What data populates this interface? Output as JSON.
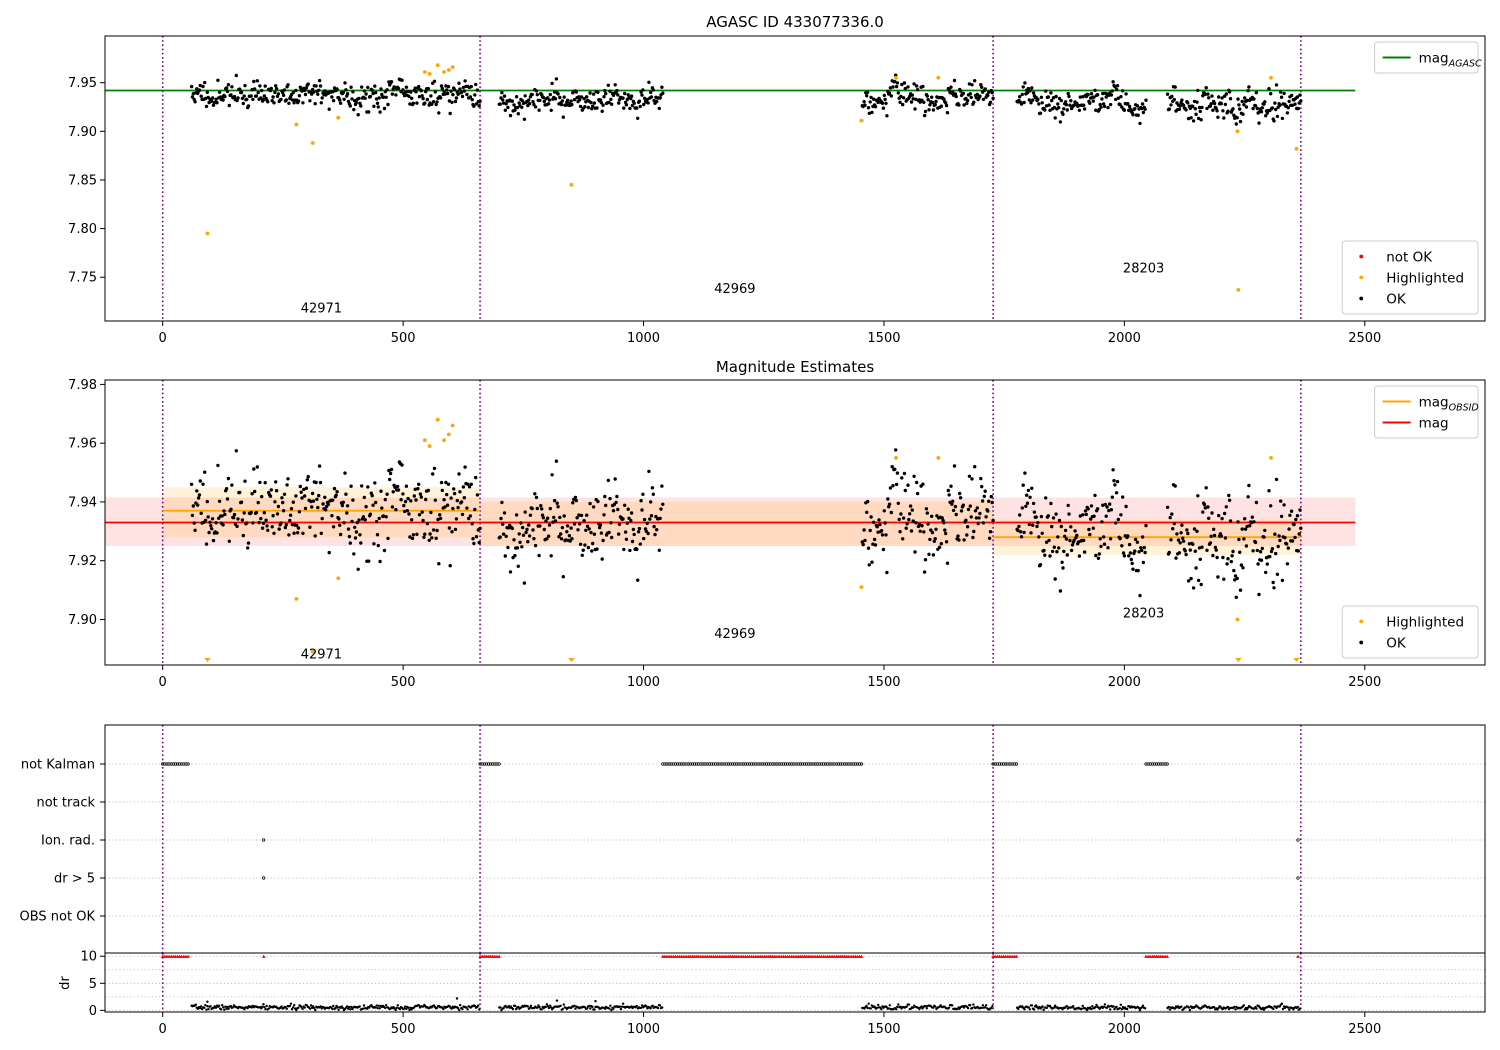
{
  "figure": {
    "background": "#ffffff"
  },
  "chart_data": [
    {
      "type": "scatter",
      "title": "AGASC ID 433077336.0",
      "xlim": [
        -120,
        2750
      ],
      "ylim": [
        7.705,
        7.998
      ],
      "x_ticks": [
        0,
        500,
        1000,
        1500,
        2000,
        2500
      ],
      "y_ticks": [
        7.75,
        7.8,
        7.85,
        7.9,
        7.95
      ],
      "y_tick_labels": [
        "7.75",
        "7.80",
        "7.85",
        "7.90",
        "7.95"
      ],
      "grid": false,
      "obsid_boundaries": [
        0,
        660,
        1727,
        2367
      ],
      "obsid_labels": [
        {
          "text": "42971",
          "x": 330,
          "y": 7.718
        },
        {
          "text": "42969",
          "x": 1190,
          "y": 7.738
        },
        {
          "text": "28203",
          "x": 2040,
          "y": 7.759
        }
      ],
      "hlines": [
        {
          "name": "mag_agasc_line",
          "y": 7.942,
          "x0": -120,
          "x1": 2480,
          "color": "#008000"
        }
      ],
      "point_groups": [
        {
          "name": "ok-points",
          "color": "#000000",
          "size": 1.7,
          "seed": 11,
          "segments": [
            {
              "x0": 60,
              "x1": 660,
              "n": 330,
              "center": 7.938,
              "spread": 0.012
            },
            {
              "x0": 700,
              "x1": 1040,
              "n": 190,
              "center": 7.931,
              "spread": 0.011
            },
            {
              "x0": 1455,
              "x1": 1727,
              "n": 150,
              "center": 7.936,
              "spread": 0.012
            },
            {
              "x0": 1777,
              "x1": 2045,
              "n": 150,
              "center": 7.928,
              "spread": 0.011
            },
            {
              "x0": 2090,
              "x1": 2367,
              "n": 160,
              "center": 7.93,
              "spread": 0.013
            }
          ]
        },
        {
          "name": "highlighted-points",
          "color": "#ffa500",
          "size": 1.9,
          "points": [
            [
              93,
              7.795
            ],
            [
              278,
              7.907
            ],
            [
              312,
              7.888
            ],
            [
              365,
              7.914
            ],
            [
              545,
              7.961
            ],
            [
              555,
              7.959
            ],
            [
              572,
              7.968
            ],
            [
              585,
              7.961
            ],
            [
              595,
              7.963
            ],
            [
              603,
              7.966
            ],
            [
              850,
              7.845
            ],
            [
              1453,
              7.911
            ],
            [
              1525,
              7.955
            ],
            [
              1613,
              7.955
            ],
            [
              2235,
              7.9
            ],
            [
              2237,
              7.737
            ],
            [
              2305,
              7.955
            ],
            [
              2358,
              7.882
            ]
          ]
        },
        {
          "name": "not-ok-points",
          "color": "#ff0000",
          "size": 1.7,
          "points": []
        }
      ],
      "legends": [
        {
          "position": "top-right",
          "entries": [
            {
              "kind": "line",
              "color": "#008000",
              "label": "mag",
              "sub": "AGASC"
            }
          ]
        },
        {
          "position": "bottom-right",
          "entries": [
            {
              "kind": "dot",
              "color": "#ff0000",
              "label": "not OK"
            },
            {
              "kind": "dot",
              "color": "#ffa500",
              "label": "Highlighted"
            },
            {
              "kind": "dot",
              "color": "#000000",
              "label": "OK"
            }
          ]
        }
      ]
    },
    {
      "type": "scatter",
      "title": "Magnitude Estimates",
      "xlim": [
        -120,
        2750
      ],
      "ylim": [
        7.8845,
        7.9815
      ],
      "x_ticks": [
        0,
        500,
        1000,
        1500,
        2000,
        2500
      ],
      "y_ticks": [
        7.9,
        7.92,
        7.94,
        7.96,
        7.98
      ],
      "y_tick_labels": [
        "7.90",
        "7.92",
        "7.94",
        "7.96",
        "7.98"
      ],
      "grid": false,
      "obsid_boundaries": [
        0,
        660,
        1727,
        2367
      ],
      "obsid_labels": [
        {
          "text": "42971",
          "x": 330,
          "y": 7.888
        },
        {
          "text": "42969",
          "x": 1190,
          "y": 7.895
        },
        {
          "text": "28203",
          "x": 2040,
          "y": 7.902
        }
      ],
      "bands": [
        {
          "name": "mag-band",
          "x0": -120,
          "x1": 2480,
          "y0": 7.925,
          "y1": 7.9415,
          "color": "#ff0000",
          "opacity": 0.11
        },
        {
          "name": "obsid-band-42971",
          "x0": 0,
          "x1": 660,
          "y0": 7.928,
          "y1": 7.945,
          "color": "#ffa500",
          "opacity": 0.15
        },
        {
          "name": "obsid-band-42969",
          "x0": 660,
          "x1": 1727,
          "y0": 7.925,
          "y1": 7.94,
          "color": "#ffa500",
          "opacity": 0.15
        },
        {
          "name": "obsid-band-28203",
          "x0": 1727,
          "x1": 2367,
          "y0": 7.922,
          "y1": 7.934,
          "color": "#ffa500",
          "opacity": 0.15
        }
      ],
      "hlines": [
        {
          "name": "mag-obsid-line-42971",
          "y": 7.937,
          "x0": 0,
          "x1": 660,
          "color": "#ffa500"
        },
        {
          "name": "mag-obsid-line-42969",
          "y": 7.933,
          "x0": 660,
          "x1": 1727,
          "color": "#ffa500"
        },
        {
          "name": "mag-obsid-line-28203",
          "y": 7.928,
          "x0": 1727,
          "x1": 2367,
          "color": "#ffa500"
        },
        {
          "name": "mag-line",
          "y": 7.933,
          "x0": -120,
          "x1": 2480,
          "color": "#ff0000"
        }
      ],
      "point_groups": [
        {
          "name": "ok-points",
          "color": "#000000",
          "size": 1.7,
          "seed": 11,
          "segments": [
            {
              "x0": 60,
              "x1": 660,
              "n": 330,
              "center": 7.938,
              "spread": 0.012
            },
            {
              "x0": 700,
              "x1": 1040,
              "n": 190,
              "center": 7.931,
              "spread": 0.011
            },
            {
              "x0": 1455,
              "x1": 1727,
              "n": 150,
              "center": 7.936,
              "spread": 0.012
            },
            {
              "x0": 1777,
              "x1": 2045,
              "n": 150,
              "center": 7.928,
              "spread": 0.011
            },
            {
              "x0": 2090,
              "x1": 2367,
              "n": 160,
              "center": 7.93,
              "spread": 0.013
            }
          ]
        },
        {
          "name": "highlighted-points",
          "color": "#ffa500",
          "size": 1.9,
          "points": [
            [
              278,
              7.907
            ],
            [
              312,
              7.889
            ],
            [
              365,
              7.914
            ],
            [
              545,
              7.961
            ],
            [
              555,
              7.959
            ],
            [
              572,
              7.968
            ],
            [
              585,
              7.961
            ],
            [
              595,
              7.963
            ],
            [
              603,
              7.966
            ],
            [
              1453,
              7.911
            ],
            [
              1525,
              7.955
            ],
            [
              1613,
              7.955
            ],
            [
              2235,
              7.9
            ],
            [
              2305,
              7.955
            ]
          ]
        }
      ],
      "markers_down": [
        {
          "x": 93,
          "color": "#ffa500"
        },
        {
          "x": 850,
          "color": "#ffa500"
        },
        {
          "x": 2237,
          "color": "#ffa500"
        },
        {
          "x": 2358,
          "color": "#ffa500"
        }
      ],
      "legends": [
        {
          "position": "top-right",
          "entries": [
            {
              "kind": "line",
              "color": "#ffa500",
              "label": "mag",
              "sub": "OBSID"
            },
            {
              "kind": "line",
              "color": "#ff0000",
              "label": "mag",
              "sub": ""
            }
          ]
        },
        {
          "position": "bottom-right",
          "entries": [
            {
              "kind": "dot",
              "color": "#ffa500",
              "label": "Highlighted"
            },
            {
              "kind": "dot",
              "color": "#000000",
              "label": "OK"
            }
          ]
        }
      ]
    },
    {
      "type": "scatter",
      "title": "",
      "xlim": [
        -120,
        2750
      ],
      "categories": [
        "not Kalman",
        "not track",
        "Ion. rad.",
        "dr > 5",
        "OBS not OK"
      ],
      "obsid_boundaries": [
        0,
        660,
        1727,
        2367
      ],
      "flags": [
        {
          "category": "not Kalman",
          "ranges": [
            [
              0,
              55
            ],
            [
              660,
              700
            ],
            [
              1040,
              1455
            ],
            [
              1727,
              1777
            ],
            [
              2045,
              2090
            ]
          ],
          "points": []
        },
        {
          "category": "not track",
          "ranges": [],
          "points": []
        },
        {
          "category": "Ion. rad.",
          "ranges": [],
          "points": [
            210,
            2361
          ]
        },
        {
          "category": "dr > 5",
          "ranges": [],
          "points": [
            210,
            2361
          ]
        },
        {
          "category": "OBS not OK",
          "ranges": [],
          "points": []
        }
      ]
    },
    {
      "type": "scatter",
      "title": "",
      "ylabel": "dr",
      "xlim": [
        -120,
        2750
      ],
      "ylim": [
        -0.3,
        10.6
      ],
      "x_ticks": [
        0,
        500,
        1000,
        1500,
        2000,
        2500
      ],
      "y_ticks": [
        0,
        5,
        10
      ],
      "y_tick_labels": [
        "0",
        "5",
        "10"
      ],
      "obsid_boundaries": [
        0,
        660,
        1727,
        2367
      ],
      "capped_value": 10,
      "capped_ranges": [
        [
          0,
          55
        ],
        [
          660,
          700
        ],
        [
          1040,
          1455
        ],
        [
          1727,
          1777
        ],
        [
          2045,
          2090
        ]
      ],
      "capped_points": [
        210,
        2361
      ],
      "dr_segments": [
        [
          60,
          660
        ],
        [
          700,
          1040
        ],
        [
          1455,
          1727
        ],
        [
          1777,
          2045
        ],
        [
          2090,
          2367
        ]
      ],
      "dr_outliers": [
        [
          93,
          1.6
        ],
        [
          612,
          2.2
        ],
        [
          820,
          1.8
        ],
        [
          900,
          1.7
        ]
      ]
    }
  ]
}
